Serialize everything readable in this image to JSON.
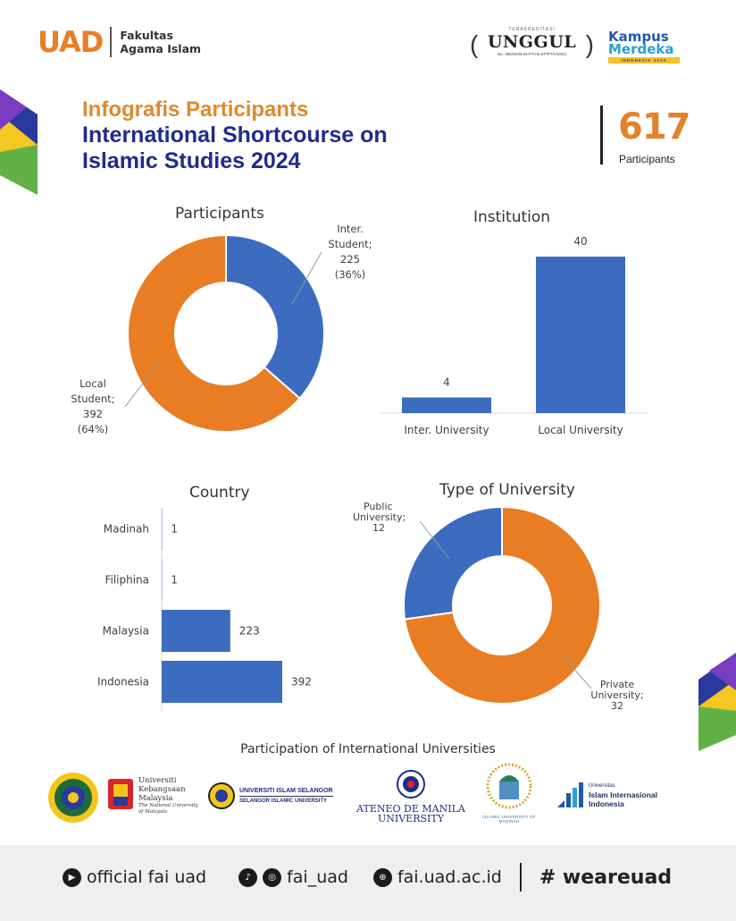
{
  "header": {
    "uad": "UAD",
    "faculty_line1": "Fakultas",
    "faculty_line2": "Agama Islam",
    "accreditation_top": "TERAKREDITASI",
    "accreditation": "UNGGUL",
    "accreditation_no": "No. 355/SK/BAN-PT/Ak.KP/PT/V/2023",
    "kampus_line1": "Kampus",
    "kampus_line2": "Merdeka",
    "kampus_line3": "INDONESIA JAYA"
  },
  "title": {
    "line1": "Infografis Participants",
    "line2": "International Shortcourse on Islamic Studies 2024",
    "total": "617",
    "total_label": "Participants"
  },
  "colors": {
    "orange": "#e87d23",
    "blue": "#3b6cc0",
    "navy": "#1f2c8c"
  },
  "chart_data": [
    {
      "type": "pie",
      "title": "Participants",
      "series": [
        {
          "label": "Inter. Student",
          "value": 225,
          "percent": "36%",
          "color": "#3b6cc0"
        },
        {
          "label": "Local Student",
          "value": 392,
          "percent": "64%",
          "color": "#e87d23"
        }
      ]
    },
    {
      "type": "bar",
      "title": "Institution",
      "categories": [
        "Inter. University",
        "Local University"
      ],
      "values": [
        4,
        40
      ],
      "color": "#3b6cc0"
    },
    {
      "type": "bar",
      "title": "Country",
      "orientation": "horizontal",
      "categories": [
        "Madinah",
        "Filiphina",
        "Malaysia",
        "Indonesia"
      ],
      "values": [
        1,
        1,
        223,
        392
      ],
      "color": "#3b6cc0"
    },
    {
      "type": "pie",
      "title": "Type of University",
      "series": [
        {
          "label": "Public University",
          "value": 12,
          "color": "#3b6cc0"
        },
        {
          "label": "Private University",
          "value": 32,
          "color": "#e87d23"
        }
      ]
    }
  ],
  "labels": {
    "inter_student": [
      "Inter.",
      "Student;",
      "225",
      "(36%)"
    ],
    "local_student": [
      "Local",
      "Student;",
      "392",
      "(64%)"
    ],
    "public_university": [
      "Public",
      "University;",
      "12"
    ],
    "private_university": [
      "Private",
      "University;",
      "32"
    ]
  },
  "partners": {
    "title": "Participation of International Universities",
    "ukm": [
      "Universiti",
      "Kebangsaan",
      "Malaysia",
      "The National University",
      "of Malaysia"
    ],
    "selangor": [
      "UNIVERSITI ISLAM SELANGOR",
      "SELANGOR ISLAMIC UNIVERSITY"
    ],
    "ateneo": [
      "ATENEO DE MANILA",
      "UNIVERSITY"
    ],
    "madinah": "ISLAMIC UNIVERSITY OF MADINAH",
    "uii": [
      "Universitas",
      "Islam Internasional",
      "Indonesia"
    ],
    "uad_seal": "UNIVERSITAS AHMAD DAHLAN"
  },
  "footer": {
    "youtube": "official fai uad",
    "social": "fai_uad",
    "web": "fai.uad.ac.id",
    "hashtag": "# weareuad"
  }
}
